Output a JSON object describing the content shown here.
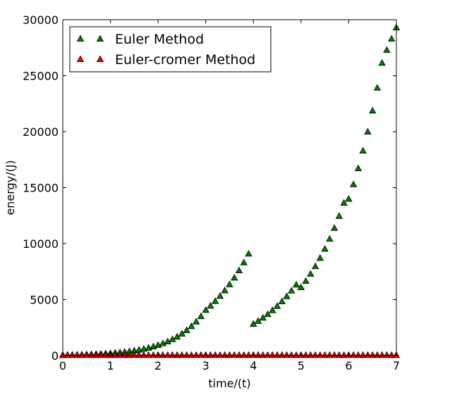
{
  "chart_data": {
    "type": "scatter",
    "xlabel": "time/(t)",
    "ylabel": "energy/(J)",
    "xlim": [
      0,
      7
    ],
    "ylim": [
      0,
      30000
    ],
    "xticks": [
      "0",
      "1",
      "2",
      "3",
      "4",
      "5",
      "6",
      "7"
    ],
    "yticks": [
      "0",
      "5000",
      "10000",
      "15000",
      "20000",
      "25000",
      "30000"
    ],
    "legend_position": "top-left",
    "marker": "triangle-up",
    "series": [
      {
        "name": "Euler Method",
        "color": "#008000",
        "x": [
          0,
          0.1,
          0.2,
          0.3,
          0.4,
          0.5,
          0.6,
          0.7,
          0.8,
          0.9,
          1.0,
          1.1,
          1.2,
          1.3,
          1.4,
          1.5,
          1.6,
          1.7,
          1.8,
          1.9,
          2.0,
          2.1,
          2.2,
          2.3,
          2.4,
          2.5,
          2.6,
          2.7,
          2.8,
          2.9,
          3.0,
          3.1,
          3.2,
          3.3,
          3.4,
          3.5,
          3.6,
          3.7,
          3.8,
          3.9,
          4.0,
          4.1,
          4.2,
          4.3,
          4.4,
          4.5,
          4.6,
          4.7,
          4.8,
          4.9,
          5.0,
          5.1,
          5.2,
          5.3,
          5.4,
          5.5,
          5.6,
          5.7,
          5.8,
          5.9,
          6.0,
          6.1,
          6.2,
          6.3,
          6.4,
          6.5,
          6.6,
          6.7,
          6.8,
          6.9,
          7.0
        ],
        "y": [
          50,
          58,
          67,
          78,
          90,
          104,
          121,
          140,
          162,
          188,
          217,
          252,
          291,
          337,
          391,
          452,
          524,
          606,
          702,
          812,
          941,
          1089,
          1261,
          1460,
          1690,
          1957,
          2265,
          2623,
          3036,
          3515,
          4070,
          4450,
          4870,
          5320,
          5820,
          6360,
          6960,
          7610,
          8320,
          9100,
          2830,
          3090,
          3380,
          3700,
          4050,
          4430,
          4840,
          5300,
          5800,
          6340,
          6100,
          6670,
          7300,
          7980,
          8720,
          9540,
          10430,
          11400,
          12470,
          13640,
          14000,
          15300,
          16730,
          18300,
          20000,
          21880,
          23920,
          26150,
          27300,
          28300,
          29300
        ]
      },
      {
        "name": "Euler-cromer Method",
        "color": "#ff0000",
        "x": [
          0,
          0.1,
          0.2,
          0.3,
          0.4,
          0.5,
          0.6,
          0.7,
          0.8,
          0.9,
          1.0,
          1.1,
          1.2,
          1.3,
          1.4,
          1.5,
          1.6,
          1.7,
          1.8,
          1.9,
          2.0,
          2.1,
          2.2,
          2.3,
          2.4,
          2.5,
          2.6,
          2.7,
          2.8,
          2.9,
          3.0,
          3.1,
          3.2,
          3.3,
          3.4,
          3.5,
          3.6,
          3.7,
          3.8,
          3.9,
          4.0,
          4.1,
          4.2,
          4.3,
          4.4,
          4.5,
          4.6,
          4.7,
          4.8,
          4.9,
          5.0,
          5.1,
          5.2,
          5.3,
          5.4,
          5.5,
          5.6,
          5.7,
          5.8,
          5.9,
          6.0,
          6.1,
          6.2,
          6.3,
          6.4,
          6.5,
          6.6,
          6.7,
          6.8,
          6.9,
          7.0
        ],
        "y": [
          50,
          52,
          49,
          51,
          50,
          53,
          48,
          50,
          52,
          49,
          51,
          50,
          53,
          48,
          50,
          52,
          49,
          51,
          50,
          53,
          48,
          50,
          52,
          49,
          51,
          50,
          53,
          48,
          50,
          52,
          49,
          51,
          50,
          53,
          48,
          50,
          52,
          49,
          51,
          50,
          53,
          48,
          50,
          52,
          49,
          51,
          50,
          53,
          48,
          50,
          52,
          49,
          51,
          50,
          53,
          48,
          50,
          52,
          49,
          51,
          50,
          53,
          48,
          50,
          52,
          49,
          51,
          50,
          53,
          48,
          50
        ]
      }
    ]
  }
}
